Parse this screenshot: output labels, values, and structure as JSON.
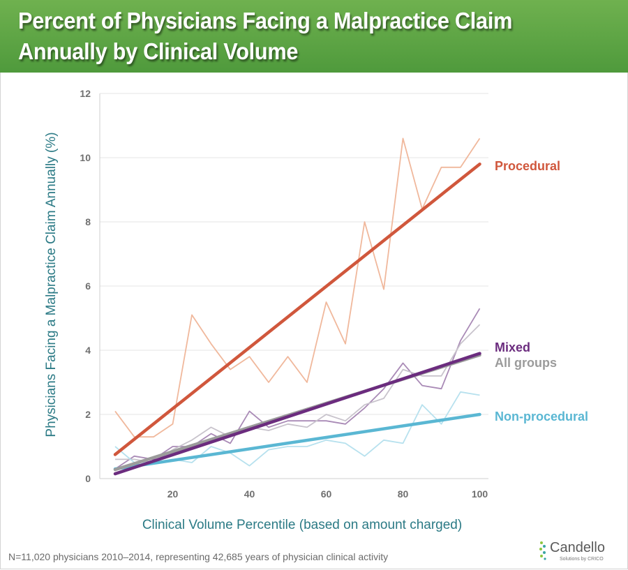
{
  "header": {
    "title": "Percent of Physicians Facing a Malpractice Claim\nAnnually by Clinical Volume"
  },
  "chart_data": {
    "type": "line",
    "xlabel": "Clinical Volume Percentile (based on amount charged)",
    "ylabel": "Physicians Facing a Malpractice Claim Annually (%)",
    "xlim": [
      5,
      100
    ],
    "ylim": [
      0,
      12
    ],
    "xticks": [
      20,
      40,
      60,
      80,
      100
    ],
    "yticks": [
      0,
      2,
      4,
      6,
      8,
      10,
      12
    ],
    "grid": "horizontal",
    "x": [
      5,
      10,
      15,
      20,
      25,
      30,
      35,
      40,
      45,
      50,
      55,
      60,
      65,
      70,
      75,
      80,
      85,
      90,
      95,
      100
    ],
    "series": [
      {
        "name": "Procedural",
        "color": "#d0573c",
        "raw_color": "#f0b89c",
        "values": [
          2.1,
          1.3,
          1.3,
          1.7,
          5.1,
          4.2,
          3.4,
          3.8,
          3.0,
          3.8,
          3.0,
          5.5,
          4.2,
          8.0,
          5.9,
          10.6,
          8.4,
          9.7,
          9.7,
          10.6
        ],
        "trend": [
          0.75,
          9.8
        ]
      },
      {
        "name": "Mixed",
        "color": "#6b2c7e",
        "raw_color": "#a98ab6",
        "values": [
          0.3,
          0.7,
          0.6,
          1.0,
          1.0,
          1.4,
          1.1,
          2.1,
          1.6,
          1.8,
          1.8,
          1.8,
          1.7,
          2.2,
          2.8,
          3.6,
          2.9,
          2.8,
          4.3,
          5.3
        ],
        "trend": [
          0.15,
          3.9
        ]
      },
      {
        "name": "All groups",
        "color": "#9b9b9b",
        "raw_color": "#c8c3cc",
        "values": [
          0.6,
          0.6,
          0.5,
          0.9,
          1.2,
          1.6,
          1.3,
          1.6,
          1.5,
          1.7,
          1.6,
          2.0,
          1.8,
          2.3,
          2.5,
          3.4,
          3.2,
          3.2,
          4.2,
          4.8
        ],
        "trend": [
          0.28,
          3.85
        ]
      },
      {
        "name": "Non-procedural",
        "color": "#5ab7d3",
        "raw_color": "#b7e1ee",
        "values": [
          1.0,
          0.5,
          0.5,
          0.6,
          0.5,
          1.0,
          0.8,
          0.4,
          0.9,
          1.0,
          1.0,
          1.2,
          1.1,
          0.7,
          1.2,
          1.1,
          2.3,
          1.7,
          2.7,
          2.6
        ],
        "trend": [
          0.3,
          2.0
        ]
      }
    ]
  },
  "footer": {
    "note": "N=11,020 physicians 2010–2014, representing 42,685 years of physician clinical activity"
  },
  "logo": {
    "name": "Candello",
    "tagline": "Solutions by CRICO"
  }
}
